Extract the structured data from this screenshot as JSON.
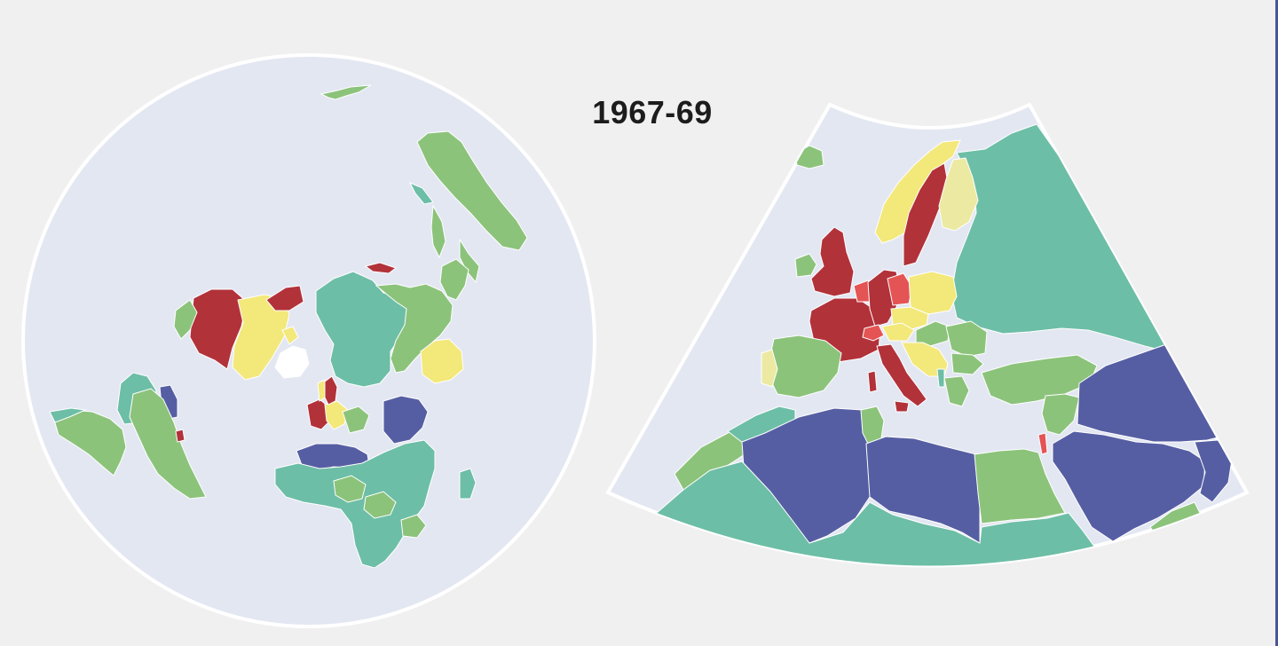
{
  "title": "1967-69",
  "colors": {
    "background": "#f0f0f0",
    "ocean": "#e3e7f2",
    "outline": "#ffffff",
    "dark_red": "#b2323a",
    "red": "#e45454",
    "yellow": "#f3e87a",
    "pale_yellow": "#ece9a3",
    "light_green": "#8cc37b",
    "teal": "#6dbea6",
    "blue": "#565ea3",
    "white_land": "#ffffff"
  },
  "maps": [
    {
      "name": "world-polar-view",
      "projection": "azimuthal"
    },
    {
      "name": "europe-conic-view",
      "projection": "conic"
    }
  ]
}
